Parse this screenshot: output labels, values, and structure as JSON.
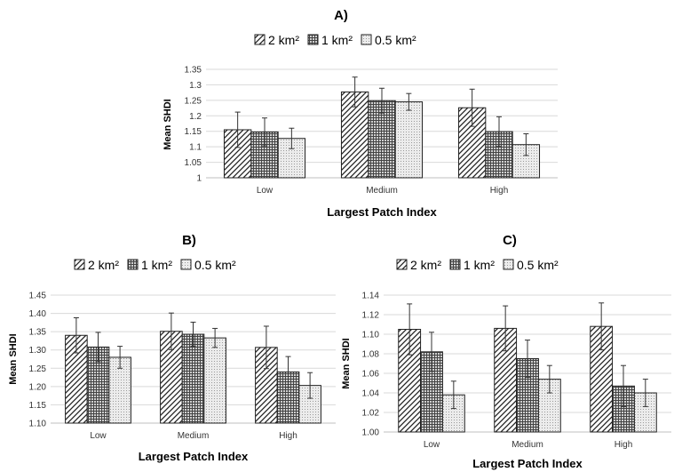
{
  "chart_data": [
    {
      "type": "bar",
      "panel_label": "A)",
      "categories": [
        "Low",
        "Medium",
        "High"
      ],
      "series": [
        {
          "name": "2 km²",
          "values": [
            1.155,
            1.277,
            1.226
          ],
          "errors": [
            0.057,
            0.048,
            0.06
          ]
        },
        {
          "name": "1 km²",
          "values": [
            1.148,
            1.249,
            1.149
          ],
          "errors": [
            0.045,
            0.04,
            0.048
          ]
        },
        {
          "name": "0.5 km²",
          "values": [
            1.127,
            1.245,
            1.107
          ],
          "errors": [
            0.033,
            0.027,
            0.035
          ]
        }
      ],
      "ylabel": "Mean SHDI",
      "xlabel": "Largest Patch Index",
      "ylim": [
        1,
        1.35
      ],
      "yticks": [
        1,
        1.05,
        1.1,
        1.15,
        1.2,
        1.25,
        1.3,
        1.35
      ],
      "ytick_labels": [
        "1",
        "1.05",
        "1.1",
        "1.15",
        "1.2",
        "1.25",
        "1.3",
        "1.35"
      ],
      "grid": true,
      "legend_position": "top"
    },
    {
      "type": "bar",
      "panel_label": "B)",
      "categories": [
        "Low",
        "Medium",
        "High"
      ],
      "series": [
        {
          "name": "2 km²",
          "values": [
            1.34,
            1.351,
            1.307
          ],
          "errors": [
            0.048,
            0.05,
            0.058
          ]
        },
        {
          "name": "1 km²",
          "values": [
            1.308,
            1.343,
            1.24
          ],
          "errors": [
            0.04,
            0.033,
            0.042
          ]
        },
        {
          "name": "0.5 km²",
          "values": [
            1.28,
            1.333,
            1.203
          ],
          "errors": [
            0.03,
            0.026,
            0.035
          ]
        }
      ],
      "ylabel": "Mean SHDI",
      "xlabel": "Largest Patch Index",
      "ylim": [
        1.1,
        1.45
      ],
      "yticks": [
        1.1,
        1.15,
        1.2,
        1.25,
        1.3,
        1.35,
        1.4,
        1.45
      ],
      "ytick_labels": [
        "1.10",
        "1.15",
        "1.20",
        "1.25",
        "1.30",
        "1.35",
        "1.40",
        "1.45"
      ],
      "grid": true,
      "legend_position": "top"
    },
    {
      "type": "bar",
      "panel_label": "C)",
      "categories": [
        "Low",
        "Medium",
        "High"
      ],
      "series": [
        {
          "name": "2 km²",
          "values": [
            1.105,
            1.106,
            1.108
          ],
          "errors": [
            0.026,
            0.023,
            0.024
          ]
        },
        {
          "name": "1 km²",
          "values": [
            1.082,
            1.075,
            1.047
          ],
          "errors": [
            0.02,
            0.019,
            0.021
          ]
        },
        {
          "name": "0.5 km²",
          "values": [
            1.038,
            1.054,
            1.04
          ],
          "errors": [
            0.014,
            0.014,
            0.014
          ]
        }
      ],
      "ylabel": "Mean SHDI",
      "xlabel": "Largest Patch Index",
      "ylim": [
        1.0,
        1.14
      ],
      "yticks": [
        1.0,
        1.02,
        1.04,
        1.06,
        1.08,
        1.1,
        1.12,
        1.14
      ],
      "ytick_labels": [
        "1.00",
        "1.02",
        "1.04",
        "1.06",
        "1.08",
        "1.10",
        "1.12",
        "1.14"
      ],
      "grid": true,
      "legend_position": "top"
    }
  ]
}
